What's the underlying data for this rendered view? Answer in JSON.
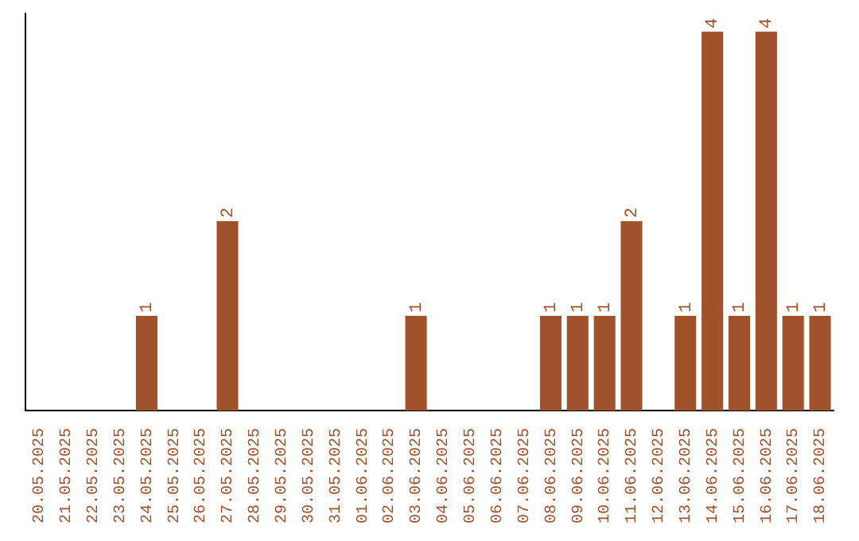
{
  "chart_data": {
    "type": "bar",
    "categories": [
      "20.05.2025",
      "21.05.2025",
      "22.05.2025",
      "23.05.2025",
      "24.05.2025",
      "25.05.2025",
      "26.05.2025",
      "27.05.2025",
      "28.05.2025",
      "29.05.2025",
      "30.05.2025",
      "31.05.2025",
      "01.06.2025",
      "02.06.2025",
      "03.06.2025",
      "04.06.2025",
      "05.06.2025",
      "06.06.2025",
      "07.06.2025",
      "08.06.2025",
      "09.06.2025",
      "10.06.2025",
      "11.06.2025",
      "12.06.2025",
      "13.06.2025",
      "14.06.2025",
      "15.06.2025",
      "16.06.2025",
      "17.06.2025",
      "18.06.2025"
    ],
    "values": [
      0,
      0,
      0,
      0,
      1,
      0,
      0,
      2,
      0,
      0,
      0,
      0,
      0,
      0,
      1,
      0,
      0,
      0,
      0,
      1,
      1,
      1,
      2,
      0,
      1,
      4,
      1,
      4,
      1,
      1
    ],
    "value_labels": [
      null,
      null,
      null,
      null,
      "1",
      null,
      null,
      "2",
      null,
      null,
      null,
      null,
      null,
      null,
      "1",
      null,
      null,
      null,
      null,
      "1",
      "1",
      "1",
      "2",
      null,
      "1",
      "4",
      "1",
      "4",
      "1",
      "1"
    ],
    "color": "#a0522d",
    "ylim": [
      0,
      4.2
    ],
    "tick_labels": "x"
  }
}
